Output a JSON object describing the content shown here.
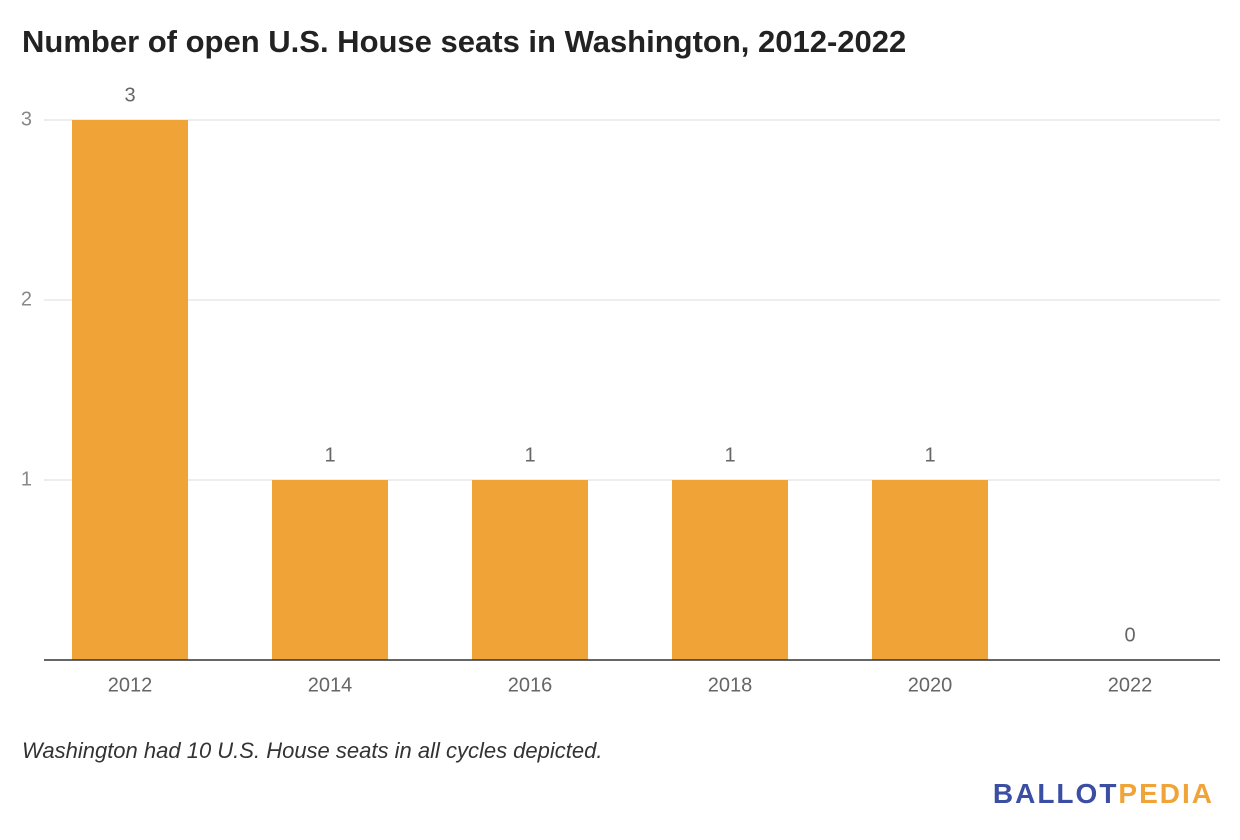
{
  "chart_data": {
    "type": "bar",
    "title": "Number of open U.S. House seats in Washington, 2012-2022",
    "categories": [
      "2012",
      "2014",
      "2016",
      "2018",
      "2020",
      "2022"
    ],
    "values": [
      3,
      1,
      1,
      1,
      1,
      0
    ],
    "color": "#f0a336",
    "ylim": [
      0,
      3
    ],
    "yticks": [
      1,
      2,
      3
    ],
    "grid": true,
    "note": "Washington had 10 U.S. House seats in all cycles depicted.",
    "logo": {
      "left": "BALLOT",
      "right": "PEDIA",
      "left_color": "#3a4ea3",
      "right_color": "#f0a336"
    }
  }
}
